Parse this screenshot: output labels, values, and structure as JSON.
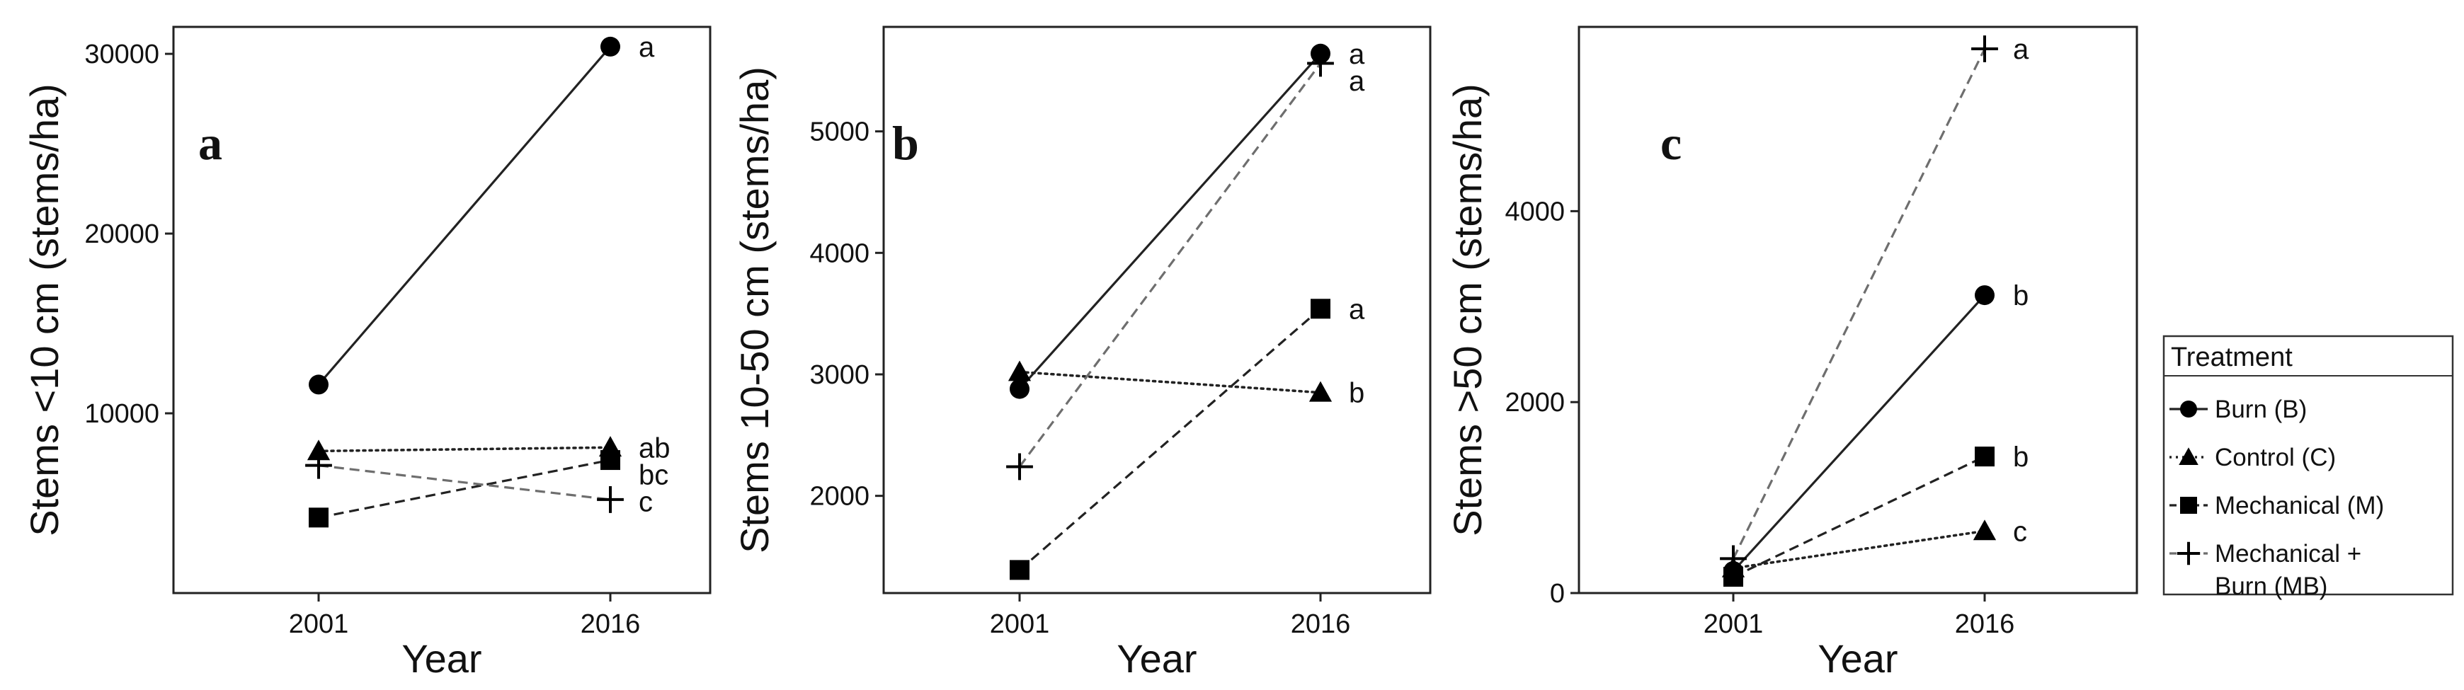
{
  "legend": {
    "title": "Treatment",
    "entries": [
      {
        "key": "B",
        "label": "Burn (B)",
        "marker": "circle",
        "line": "solid"
      },
      {
        "key": "C",
        "label": "Control (C)",
        "marker": "triangle",
        "line": "dotted"
      },
      {
        "key": "M",
        "label": "Mechanical (M)",
        "marker": "square",
        "line": "dashed"
      },
      {
        "key": "MB",
        "label": "Mechanical +",
        "label2": "Burn (MB)",
        "marker": "plus",
        "line": "dashed-light"
      }
    ]
  },
  "chart_data": [
    {
      "type": "line",
      "panel_label": "a",
      "xlabel": "Year",
      "ylabel": "Stems <10 cm (stems/ha)",
      "categories": [
        "2001",
        "2016"
      ],
      "ylim": [
        0,
        31500
      ],
      "yticks": [
        10000,
        20000,
        30000
      ],
      "grid": false,
      "series": [
        {
          "key": "B",
          "name": "Burn (B)",
          "values": [
            11600,
            30400
          ],
          "sig": "a"
        },
        {
          "key": "C",
          "name": "Control (C)",
          "values": [
            7900,
            8100
          ],
          "sig": "ab"
        },
        {
          "key": "M",
          "name": "Mechanical (M)",
          "values": [
            4200,
            7400
          ],
          "sig": "bc"
        },
        {
          "key": "MB",
          "name": "Mechanical + Burn (MB)",
          "values": [
            7100,
            5200
          ],
          "sig": "c"
        }
      ]
    },
    {
      "type": "line",
      "panel_label": "b",
      "xlabel": "Year",
      "ylabel": "Stems 10-50 cm (stems/ha)",
      "categories": [
        "2001",
        "2016"
      ],
      "ylim": [
        1200,
        5860
      ],
      "yticks": [
        2000,
        3000,
        4000,
        5000
      ],
      "grid": false,
      "series": [
        {
          "key": "B",
          "name": "Burn (B)",
          "values": [
            2880,
            5640
          ],
          "sig": "a"
        },
        {
          "key": "C",
          "name": "Control (C)",
          "values": [
            3020,
            2850
          ],
          "sig": "b"
        },
        {
          "key": "M",
          "name": "Mechanical (M)",
          "values": [
            1390,
            3540
          ],
          "sig": "a"
        },
        {
          "key": "MB",
          "name": "Mechanical + Burn (MB)",
          "values": [
            2240,
            5560
          ],
          "sig": "a"
        }
      ]
    },
    {
      "type": "line",
      "panel_label": "c",
      "xlabel": "Year",
      "ylabel": "Stems >50 cm (stems/ha)",
      "categories": [
        "2001",
        "2016"
      ],
      "ylim": [
        0,
        5930
      ],
      "yticks": [
        0,
        2000,
        4000
      ],
      "grid": false,
      "series": [
        {
          "key": "B",
          "name": "Burn (B)",
          "values": [
            230,
            3120
          ],
          "sig": "b"
        },
        {
          "key": "C",
          "name": "Control (C)",
          "values": [
            260,
            650
          ],
          "sig": "c"
        },
        {
          "key": "M",
          "name": "Mechanical (M)",
          "values": [
            170,
            1430
          ],
          "sig": "b"
        },
        {
          "key": "MB",
          "name": "Mechanical + Burn (MB)",
          "values": [
            360,
            5700
          ],
          "sig": "a"
        }
      ]
    }
  ]
}
